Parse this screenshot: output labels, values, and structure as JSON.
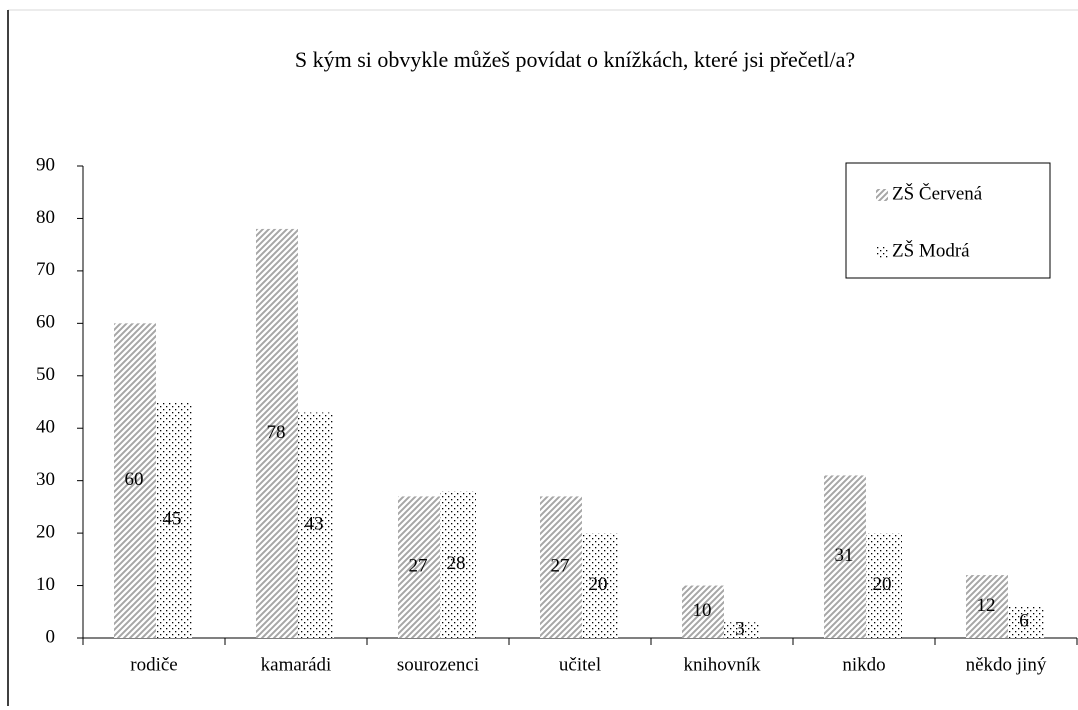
{
  "chart_data": {
    "type": "bar",
    "title": "S kým si obvykle  můžeš povídat o knížkách,  které jsi přečetl/a?",
    "categories": [
      "rodiče",
      "kamarádi",
      "sourozenci",
      "učitel",
      "knihovník",
      "nikdo",
      "někdo jiný"
    ],
    "series": [
      {
        "name": "ZŠ Červená",
        "color": "#a6a6a6",
        "pattern": "hatch",
        "values": [
          60,
          78,
          27,
          27,
          10,
          31,
          12
        ]
      },
      {
        "name": "ZŠ Modrá",
        "color": "#000000",
        "pattern": "dots",
        "values": [
          45,
          43,
          28,
          20,
          3,
          20,
          6
        ]
      }
    ],
    "ylim": [
      0,
      90
    ],
    "yticks": [
      0,
      10,
      20,
      30,
      40,
      50,
      60,
      70,
      80,
      90
    ],
    "grid": false,
    "legend": "top-right"
  }
}
